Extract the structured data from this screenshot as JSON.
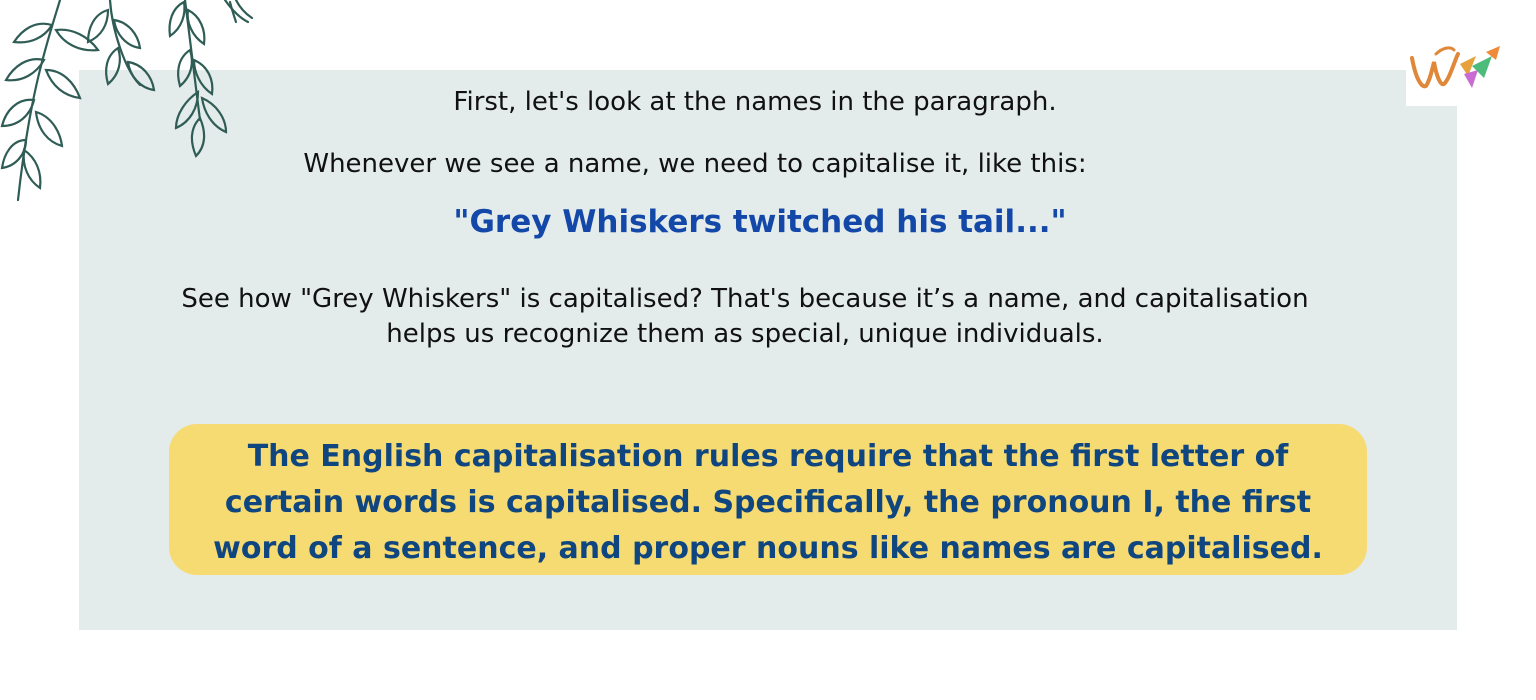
{
  "content": {
    "intro": "First, let's look at the names in the paragraph.",
    "rule": "Whenever we see a name, we need to capitalise it, like this:",
    "example_quote": "\"Grey Whiskers twitched his tail...\"",
    "explanation": "See how \"Grey Whiskers\" is capitalised? That's because it’s a name, and capitalisation helps us recognize them as special, unique individuals.",
    "highlight_note": "The English capitalisation rules require that the first letter of certain words is capitalised. Specifically, the pronoun I, the first word of a sentence, and proper nouns like names are capitalised."
  },
  "colors": {
    "card_background": "#e3ebeb",
    "quote_text": "#1348a8",
    "highlight_background": "#f6da72",
    "highlight_text": "#0f4680",
    "leaf_stroke": "#2f5d55"
  },
  "decorations": {
    "corner_art": "leaf-branches-icon",
    "brand_logo": "w-logo-icon"
  }
}
